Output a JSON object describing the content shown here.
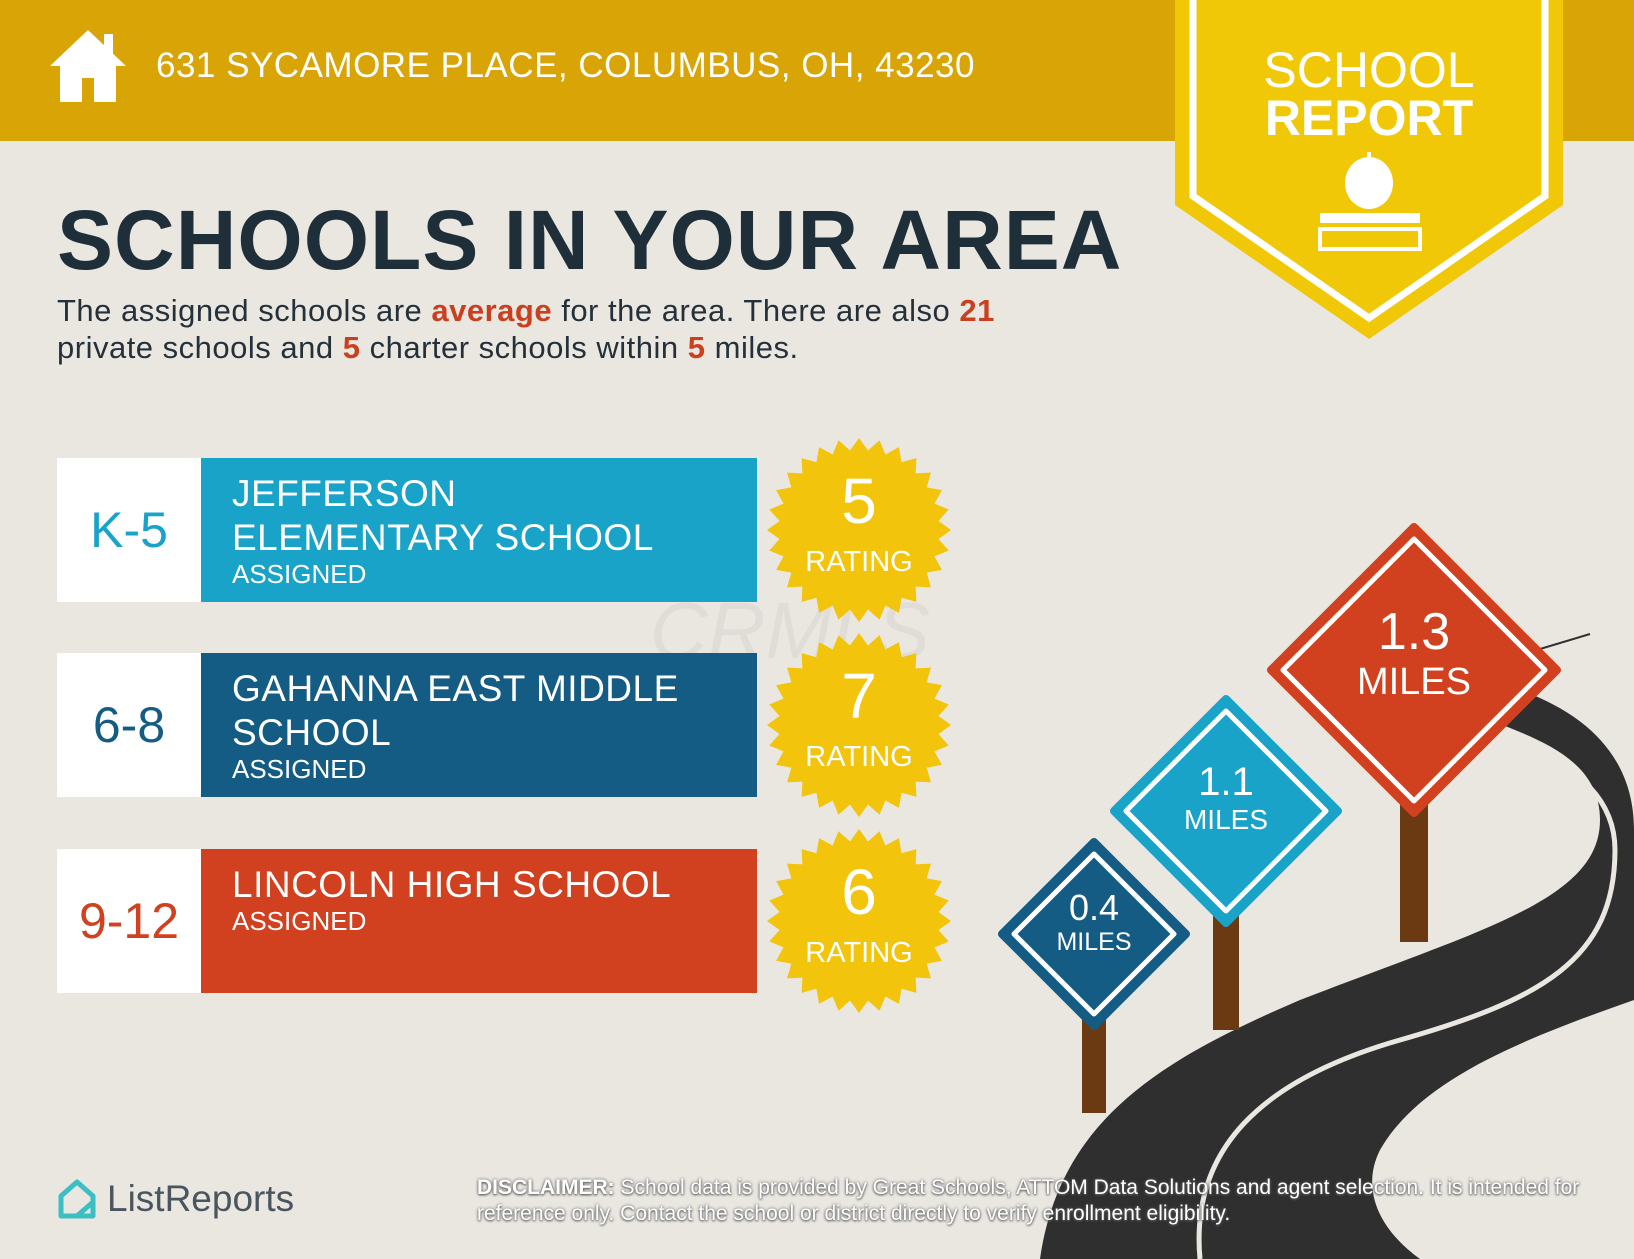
{
  "header": {
    "address": "631 SYCAMORE PLACE, COLUMBUS, OH, 43230",
    "icon": "house-icon"
  },
  "badge": {
    "line1": "SCHOOL",
    "line2": "REPORT",
    "icon": "apple-on-book-icon"
  },
  "title": "SCHOOLS IN YOUR AREA",
  "summary": {
    "p1": "The assigned schools are ",
    "quality": "average",
    "p2": " for the area. There are also ",
    "private_count": "21",
    "p3": " private schools and ",
    "charter_count": "5",
    "p4": " charter schools within ",
    "radius": "5",
    "p5": " miles."
  },
  "schools": [
    {
      "grades": "K-5",
      "name_line1": "JEFFERSON",
      "name_line2": "ELEMENTARY SCHOOL",
      "status": "ASSIGNED",
      "rating": "5",
      "rating_label": "RATING",
      "color": "#1AA3C9",
      "grade_color": "#1AA3C9"
    },
    {
      "grades": "6-8",
      "name_line1": "GAHANNA EAST MIDDLE",
      "name_line2": "SCHOOL",
      "status": "ASSIGNED",
      "rating": "7",
      "rating_label": "RATING",
      "color": "#155C85",
      "grade_color": "#155C85"
    },
    {
      "grades": "9-12",
      "name_line1": "LINCOLN HIGH SCHOOL",
      "name_line2": "",
      "status": "ASSIGNED",
      "rating": "6",
      "rating_label": "RATING",
      "color": "#D1401F",
      "grade_color": "#D1401F"
    }
  ],
  "distances": [
    {
      "value": "0.4",
      "unit": "MILES",
      "color": "#155C85"
    },
    {
      "value": "1.1",
      "unit": "MILES",
      "color": "#1AA3C9"
    },
    {
      "value": "1.3",
      "unit": "MILES",
      "color": "#D1401F"
    }
  ],
  "watermark": "CRMLS",
  "footer": {
    "logo": "ListReports",
    "disclaimer_label": "DISCLAIMER:",
    "disclaimer": " School data is provided by Great Schools, ATTOM Data Solutions and agent selection. It is intended for reference only. Contact the school or district directly to verify enrollment eligibility."
  }
}
